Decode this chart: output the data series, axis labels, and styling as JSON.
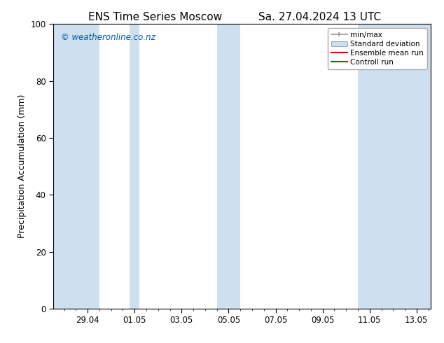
{
  "title1": "ENS Time Series Moscow",
  "title2": "Sa. 27.04.2024 13 UTC",
  "ylabel": "Precipitation Accumulation (mm)",
  "watermark": "© weatheronline.co.nz",
  "ylim": [
    0,
    100
  ],
  "yticks": [
    0,
    20,
    40,
    60,
    80,
    100
  ],
  "xtick_labels": [
    "29.04",
    "01.05",
    "03.05",
    "05.05",
    "07.05",
    "09.05",
    "11.05",
    "13.05"
  ],
  "xtick_positions": [
    2,
    4,
    6,
    8,
    10,
    12,
    14,
    16
  ],
  "x_min": 0.54,
  "x_max": 16.6,
  "shaded_regions": [
    [
      0.54,
      2.5
    ],
    [
      3.8,
      4.2
    ],
    [
      7.5,
      8.5
    ],
    [
      13.5,
      16.6
    ]
  ],
  "shade_color": "#cee0ef",
  "legend_labels": [
    "min/max",
    "Standard deviation",
    "Ensemble mean run",
    "Controll run"
  ],
  "legend_colors_line": [
    "#999999",
    "#aabbcc",
    "#ff0000",
    "#008800"
  ],
  "bg_color": "#ffffff",
  "title_fontsize": 11,
  "label_fontsize": 9,
  "tick_fontsize": 8.5,
  "watermark_color": "#0055bb",
  "watermark_fontsize": 8.5
}
